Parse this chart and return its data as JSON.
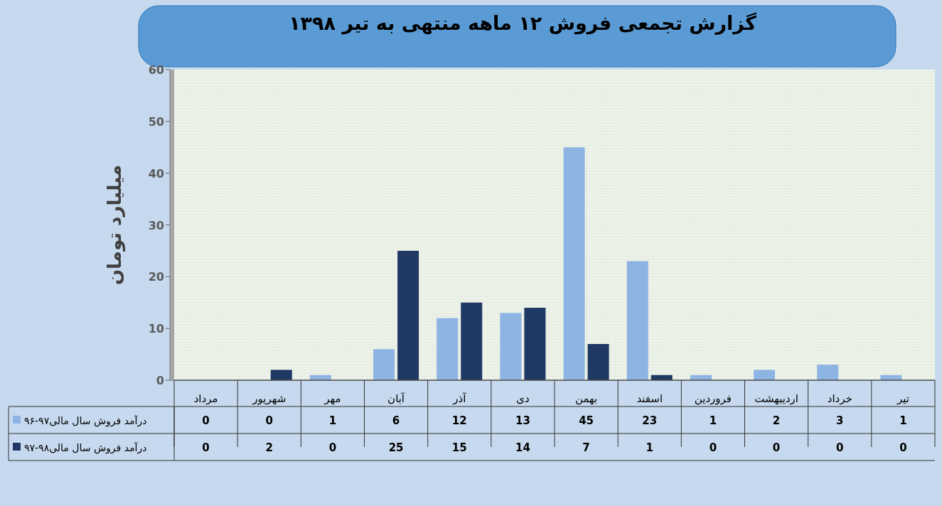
{
  "chart_data": {
    "type": "bar",
    "title": "گزارش تجمعی فروش ۱۲ ماهه منتهی به تیر ۱۳۹۸",
    "ylabel": "میلیارد تومان",
    "categories": [
      "مرداد",
      "شهریور",
      "مهر",
      "آبان",
      "آذر",
      "دی",
      "بهمن",
      "اسفند",
      "فروردین",
      "اردیبهشت",
      "خرداد",
      "تیر"
    ],
    "series": [
      {
        "name": "درآمد فروش سال مالی۹۷-۹۶",
        "color": "#8db4e2",
        "values": [
          0,
          0,
          1,
          6,
          12,
          13,
          45,
          23,
          1,
          2,
          3,
          1
        ]
      },
      {
        "name": "درآمد فروش سال مالی۹۸-۹۷",
        "color": "#1f3864",
        "values": [
          0,
          2,
          0,
          25,
          15,
          14,
          7,
          1,
          0,
          0,
          0,
          0
        ]
      }
    ],
    "ylim": [
      0,
      60
    ],
    "yticks": [
      0,
      10,
      20,
      30,
      40,
      50,
      60
    ],
    "grid": false,
    "legend": "bottom",
    "data_labels": true
  }
}
